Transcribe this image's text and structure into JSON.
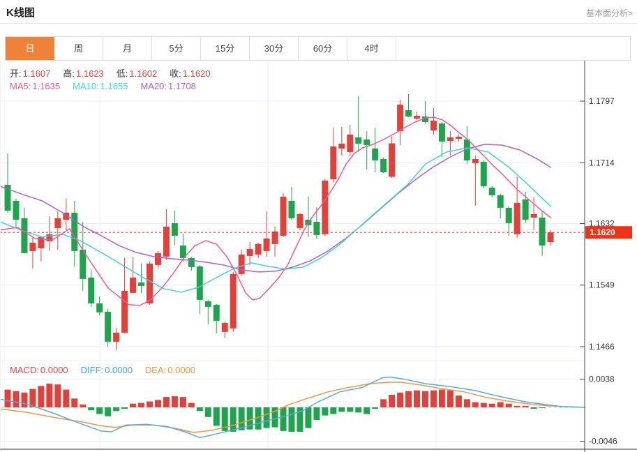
{
  "header": {
    "title": "K线图",
    "link": "基本面分析>"
  },
  "tabs": {
    "items": [
      "日",
      "周",
      "月",
      "5分",
      "15分",
      "30分",
      "60分",
      "4时"
    ],
    "active_index": 0
  },
  "legend": {
    "ohlc": [
      {
        "key": "open",
        "label": "开:",
        "value": "1.1607"
      },
      {
        "key": "high",
        "label": "高:",
        "value": "1.1623"
      },
      {
        "key": "low",
        "label": "低:",
        "value": "1.1602"
      },
      {
        "key": "close",
        "label": "收:",
        "value": "1.1620"
      }
    ],
    "ma": [
      {
        "key": "ma5",
        "label": "MA5:",
        "value": "1.1635",
        "color": "#f4578f"
      },
      {
        "key": "ma10",
        "label": "MA10:",
        "value": "1.1655",
        "color": "#44cde2"
      },
      {
        "key": "ma20",
        "label": "MA20:",
        "value": "1.1708",
        "color": "#b15ec6"
      }
    ],
    "macd": [
      {
        "key": "macd",
        "label": "MACD:",
        "value": "0.0000",
        "color": "#e8443f"
      },
      {
        "key": "diff",
        "label": "DIFF:",
        "value": "0.0000",
        "color": "#4a9fe8"
      },
      {
        "key": "dea",
        "label": "DEA:",
        "value": "0.0000",
        "color": "#f5923e"
      }
    ]
  },
  "colors": {
    "up": "#e2403a",
    "down": "#1fa44d",
    "ma5": "#f4578f",
    "ma10": "#44cde2",
    "ma20": "#b15ec6",
    "diff": "#58a8e8",
    "dea": "#f29441",
    "grid": "#e9edf3",
    "axis": "#444444",
    "dotted_price_line": "#f03b30",
    "price_box": "#ee3418",
    "zero_dash": "#8ed7ea",
    "label": "#333333",
    "tab_active": "#ef8239"
  },
  "chart_data": [
    {
      "type": "candlestick",
      "title": "K线图 (daily)",
      "ylabel": "price",
      "y_ticks": [
        1.1797,
        1.1714,
        1.1632,
        1.1549,
        1.1466
      ],
      "ylim": [
        1.1425,
        1.1851
      ],
      "last_price": 1.162,
      "last_price_label": "1.1620",
      "grid": true,
      "candles_ohlc": [
        [
          1.16842,
          1.17265,
          1.16466,
          1.16494
        ],
        [
          1.16626,
          1.16654,
          1.16259,
          1.16372
        ],
        [
          1.16391,
          1.16532,
          1.15921,
          1.15921
        ],
        [
          1.15949,
          1.16137,
          1.15714,
          1.16062
        ],
        [
          1.15987,
          1.16156,
          1.15808,
          1.16137
        ],
        [
          1.16081,
          1.16419,
          1.15949,
          1.16175
        ],
        [
          1.16259,
          1.16485,
          1.15968,
          1.16391
        ],
        [
          1.16372,
          1.16654,
          1.16231,
          1.16466
        ],
        [
          1.16466,
          1.16626,
          1.15742,
          1.15949
        ],
        [
          1.15968,
          1.16344,
          1.15413,
          1.15573
        ],
        [
          1.15592,
          1.15695,
          1.15197,
          1.15244
        ],
        [
          1.15244,
          1.15338,
          1.15084,
          1.15122
        ],
        [
          1.15131,
          1.15169,
          1.14661,
          1.14727
        ],
        [
          1.14727,
          1.14915,
          1.14614,
          1.14849
        ],
        [
          1.14849,
          1.15855,
          1.1484,
          1.15413
        ],
        [
          1.15385,
          1.15874,
          1.15385,
          1.15592
        ],
        [
          1.15526,
          1.1578,
          1.15385,
          1.15479
        ],
        [
          1.15244,
          1.15808,
          1.15225,
          1.1578
        ],
        [
          1.15761,
          1.15949,
          1.15714,
          1.15921
        ],
        [
          1.15874,
          1.16513,
          1.15836,
          1.16278
        ],
        [
          1.16325,
          1.16494,
          1.16024,
          1.16156
        ],
        [
          1.16024,
          1.16184,
          1.15808,
          1.15855
        ],
        [
          1.15855,
          1.15874,
          1.15686,
          1.15733
        ],
        [
          1.15742,
          1.15761,
          1.15103,
          1.15291
        ],
        [
          1.15272,
          1.15291,
          1.14962,
          1.15197
        ],
        [
          1.15225,
          1.15235,
          1.1484,
          1.15009
        ],
        [
          1.14859,
          1.14999,
          1.14774,
          1.1498
        ],
        [
          1.14906,
          1.15667,
          1.14859,
          1.15639
        ],
        [
          1.15639,
          1.15968,
          1.1562,
          1.15902
        ],
        [
          1.15883,
          1.16071,
          1.15761,
          1.15977
        ],
        [
          1.15902,
          1.16062,
          1.15855,
          1.16043
        ],
        [
          1.15949,
          1.16485,
          1.15874,
          1.16118
        ],
        [
          1.16043,
          1.16278,
          1.15874,
          1.16212
        ],
        [
          1.16156,
          1.16729,
          1.16137,
          1.16682
        ],
        [
          1.16626,
          1.16814,
          1.16372,
          1.16391
        ],
        [
          1.16259,
          1.16466,
          1.16231,
          1.16447
        ],
        [
          1.16372,
          1.16682,
          1.16137,
          1.16297
        ],
        [
          1.16344,
          1.16541,
          1.16109,
          1.16165
        ],
        [
          1.16175,
          1.16927,
          1.16156,
          1.16899
        ],
        [
          1.16917,
          1.17613,
          1.1687,
          1.17359
        ],
        [
          1.17331,
          1.17622,
          1.17237,
          1.17397
        ],
        [
          1.17284,
          1.1765,
          1.17227,
          1.17519
        ],
        [
          1.17481,
          1.18036,
          1.17284,
          1.17397
        ],
        [
          1.17453,
          1.17566,
          1.17049,
          1.17378
        ],
        [
          1.17331,
          1.17613,
          1.17011,
          1.17171
        ],
        [
          1.1719,
          1.17209,
          1.17002,
          1.17011
        ],
        [
          1.16951,
          1.17496,
          1.16932,
          1.17402
        ],
        [
          1.17566,
          1.17989,
          1.17374,
          1.17923
        ],
        [
          1.17848,
          1.18064,
          1.17754,
          1.17763
        ],
        [
          1.17735,
          1.17829,
          1.17716,
          1.17773
        ],
        [
          1.17763,
          1.1797,
          1.17669,
          1.17688
        ],
        [
          1.17575,
          1.17876,
          1.17519,
          1.17707
        ],
        [
          1.17669,
          1.17688,
          1.17218,
          1.17425
        ],
        [
          1.17434,
          1.17566,
          1.17237,
          1.17481
        ],
        [
          1.17462,
          1.17519,
          1.17425,
          1.1749
        ],
        [
          1.17453,
          1.17632,
          1.17124,
          1.17171
        ],
        [
          1.17133,
          1.17237,
          1.1656,
          1.1719
        ],
        [
          1.17152,
          1.17171,
          1.16795,
          1.16823
        ],
        [
          1.16804,
          1.16823,
          1.16673,
          1.16701
        ],
        [
          1.16701,
          1.1672,
          1.16391,
          1.16532
        ],
        [
          1.16532,
          1.16551,
          1.16156,
          1.16325
        ],
        [
          1.16175,
          1.16955,
          1.16128,
          1.16598
        ],
        [
          1.16645,
          1.16748,
          1.16325,
          1.16372
        ],
        [
          1.164,
          1.16673,
          1.16231,
          1.16447
        ],
        [
          1.164,
          1.16485,
          1.15883,
          1.16024
        ],
        [
          1.1607,
          1.1623,
          1.1602,
          1.162
        ]
      ],
      "ma5_line": [
        [
          0.0,
          1.16231
        ],
        [
          0.03,
          1.16269
        ],
        [
          0.06,
          1.16118
        ],
        [
          0.09,
          1.16099
        ],
        [
          0.119,
          1.1625
        ],
        [
          0.152,
          1.15836
        ],
        [
          0.185,
          1.15451
        ],
        [
          0.221,
          1.15225
        ],
        [
          0.239,
          1.15216
        ],
        [
          0.257,
          1.15291
        ],
        [
          0.278,
          1.1546
        ],
        [
          0.298,
          1.15667
        ],
        [
          0.316,
          1.15874
        ],
        [
          0.334,
          1.16024
        ],
        [
          0.352,
          1.1609
        ],
        [
          0.37,
          1.16043
        ],
        [
          0.388,
          1.15874
        ],
        [
          0.406,
          1.1562
        ],
        [
          0.42,
          1.15385
        ],
        [
          0.432,
          1.15291
        ],
        [
          0.444,
          1.1531
        ],
        [
          0.459,
          1.15432
        ],
        [
          0.477,
          1.15592
        ],
        [
          0.492,
          1.15761
        ],
        [
          0.506,
          1.15996
        ],
        [
          0.52,
          1.16231
        ],
        [
          0.535,
          1.16419
        ],
        [
          0.549,
          1.1656
        ],
        [
          0.563,
          1.1672
        ],
        [
          0.578,
          1.16908
        ],
        [
          0.592,
          1.17124
        ],
        [
          0.606,
          1.17265
        ],
        [
          0.62,
          1.1734
        ],
        [
          0.638,
          1.17387
        ],
        [
          0.656,
          1.17453
        ],
        [
          0.674,
          1.17528
        ],
        [
          0.692,
          1.17613
        ],
        [
          0.71,
          1.17688
        ],
        [
          0.728,
          1.17744
        ],
        [
          0.742,
          1.17754
        ],
        [
          0.757,
          1.17716
        ],
        [
          0.771,
          1.17641
        ],
        [
          0.785,
          1.17547
        ],
        [
          0.8,
          1.17453
        ],
        [
          0.814,
          1.1734
        ],
        [
          0.828,
          1.17227
        ],
        [
          0.842,
          1.17114
        ],
        [
          0.857,
          1.17002
        ],
        [
          0.871,
          1.16889
        ],
        [
          0.885,
          1.16776
        ],
        [
          0.9,
          1.16673
        ],
        [
          0.914,
          1.16579
        ],
        [
          0.928,
          1.16485
        ],
        [
          0.942,
          1.164
        ]
      ],
      "ma10_line": [
        [
          0.0,
          1.16344
        ],
        [
          0.036,
          1.16231
        ],
        [
          0.072,
          1.16137
        ],
        [
          0.107,
          1.16175
        ],
        [
          0.137,
          1.1609
        ],
        [
          0.173,
          1.1593
        ],
        [
          0.209,
          1.15761
        ],
        [
          0.245,
          1.15592
        ],
        [
          0.28,
          1.15442
        ],
        [
          0.31,
          1.15395
        ],
        [
          0.34,
          1.1546
        ],
        [
          0.37,
          1.15592
        ],
        [
          0.4,
          1.15714
        ],
        [
          0.43,
          1.15789
        ],
        [
          0.459,
          1.15742
        ],
        [
          0.489,
          1.15705
        ],
        [
          0.519,
          1.15733
        ],
        [
          0.549,
          1.15855
        ],
        [
          0.579,
          1.16024
        ],
        [
          0.609,
          1.16231
        ],
        [
          0.638,
          1.16438
        ],
        [
          0.668,
          1.16645
        ],
        [
          0.698,
          1.16851
        ],
        [
          0.728,
          1.17124
        ],
        [
          0.764,
          1.17284
        ],
        [
          0.8,
          1.1734
        ],
        [
          0.835,
          1.17284
        ],
        [
          0.871,
          1.17077
        ],
        [
          0.907,
          1.16814
        ],
        [
          0.942,
          1.16551
        ]
      ],
      "ma20_line": [
        [
          0.0,
          1.16823
        ],
        [
          0.036,
          1.1672
        ],
        [
          0.072,
          1.16626
        ],
        [
          0.107,
          1.16466
        ],
        [
          0.143,
          1.16278
        ],
        [
          0.173,
          1.16156
        ],
        [
          0.203,
          1.16024
        ],
        [
          0.233,
          1.1593
        ],
        [
          0.263,
          1.15874
        ],
        [
          0.292,
          1.15846
        ],
        [
          0.322,
          1.15827
        ],
        [
          0.352,
          1.15799
        ],
        [
          0.382,
          1.15761
        ],
        [
          0.412,
          1.15695
        ],
        [
          0.442,
          1.15667
        ],
        [
          0.471,
          1.15677
        ],
        [
          0.501,
          1.15733
        ],
        [
          0.531,
          1.15818
        ],
        [
          0.561,
          1.15949
        ],
        [
          0.591,
          1.16118
        ],
        [
          0.62,
          1.16306
        ],
        [
          0.65,
          1.16513
        ],
        [
          0.68,
          1.1672
        ],
        [
          0.71,
          1.16908
        ],
        [
          0.74,
          1.17077
        ],
        [
          0.77,
          1.17218
        ],
        [
          0.8,
          1.17331
        ],
        [
          0.829,
          1.17387
        ],
        [
          0.859,
          1.17378
        ],
        [
          0.889,
          1.17312
        ],
        [
          0.919,
          1.1719
        ],
        [
          0.942,
          1.17077
        ]
      ]
    },
    {
      "type": "bar",
      "title": "MACD",
      "y_ticks": [
        0.0038,
        -0.0046
      ],
      "zero_line": 0.0,
      "histogram": [
        0.0024,
        0.0022,
        0.002,
        0.0025,
        0.0029,
        0.0032,
        0.0031,
        0.0024,
        0.0012,
        0.0004,
        -0.0004,
        -0.0009,
        -0.0012,
        -0.0005,
        -0.0002,
        0.0005,
        0.0006,
        0.0008,
        0.001,
        0.0014,
        0.0015,
        0.0014,
        0.0006,
        -0.0005,
        -0.0013,
        -0.0025,
        -0.0032,
        -0.0033,
        -0.0031,
        -0.003,
        -0.003,
        -0.0028,
        -0.0027,
        -0.0032,
        -0.0033,
        -0.0033,
        -0.0028,
        -0.0017,
        -0.0011,
        -0.0009,
        -0.0006,
        -0.0006,
        -0.0007,
        -0.0009,
        -0.0002,
        0.0011,
        0.0017,
        0.002,
        0.0022,
        0.0023,
        0.0022,
        0.0023,
        0.0024,
        0.0023,
        0.0016,
        0.0011,
        0.0007,
        0.0006,
        0.0005,
        0.0007,
        0.0005,
        0.0002,
        0.0002,
        -0.0002,
        -0.0001,
        0.0
      ],
      "diff_line": [
        [
          0.0,
          0.0011
        ],
        [
          0.042,
          0.0005
        ],
        [
          0.063,
          0.0
        ],
        [
          0.095,
          -0.0009
        ],
        [
          0.131,
          -0.002
        ],
        [
          0.173,
          -0.0032
        ],
        [
          0.191,
          -0.0033
        ],
        [
          0.215,
          -0.0024
        ],
        [
          0.251,
          -0.0023
        ],
        [
          0.286,
          -0.0026
        ],
        [
          0.316,
          -0.0033
        ],
        [
          0.342,
          -0.0041
        ],
        [
          0.37,
          -0.0036
        ],
        [
          0.412,
          -0.0028
        ],
        [
          0.453,
          -0.0019
        ],
        [
          0.489,
          -0.0012
        ],
        [
          0.519,
          -0.0004
        ],
        [
          0.543,
          0.0007
        ],
        [
          0.581,
          0.0021
        ],
        [
          0.62,
          0.0027
        ],
        [
          0.654,
          0.004
        ],
        [
          0.668,
          0.0041
        ],
        [
          0.692,
          0.0038
        ],
        [
          0.728,
          0.0032
        ],
        [
          0.77,
          0.0028
        ],
        [
          0.811,
          0.0023
        ],
        [
          0.853,
          0.0015
        ],
        [
          0.895,
          0.0008
        ],
        [
          0.931,
          0.0004
        ],
        [
          0.96,
          0.0001
        ],
        [
          1.0,
          0.0
        ]
      ],
      "dea_line": [
        [
          0.0,
          -0.0002
        ],
        [
          0.048,
          -0.0007
        ],
        [
          0.095,
          -0.0014
        ],
        [
          0.143,
          -0.002
        ],
        [
          0.173,
          -0.0025
        ],
        [
          0.197,
          -0.0027
        ],
        [
          0.227,
          -0.0024
        ],
        [
          0.263,
          -0.0024
        ],
        [
          0.298,
          -0.0028
        ],
        [
          0.331,
          -0.0034
        ],
        [
          0.364,
          -0.0031
        ],
        [
          0.4,
          -0.0024
        ],
        [
          0.436,
          -0.0015
        ],
        [
          0.471,
          -0.0005
        ],
        [
          0.495,
          0.0004
        ],
        [
          0.525,
          0.0012
        ],
        [
          0.561,
          0.0021
        ],
        [
          0.597,
          0.0027
        ],
        [
          0.632,
          0.0032
        ],
        [
          0.665,
          0.0034
        ],
        [
          0.686,
          0.0034
        ],
        [
          0.722,
          0.003
        ],
        [
          0.758,
          0.0025
        ],
        [
          0.794,
          0.0021
        ],
        [
          0.829,
          0.0014
        ],
        [
          0.865,
          0.0009
        ],
        [
          0.901,
          0.0005
        ],
        [
          0.937,
          0.0002
        ],
        [
          0.967,
          0.0001
        ],
        [
          1.0,
          0.0
        ]
      ]
    }
  ]
}
